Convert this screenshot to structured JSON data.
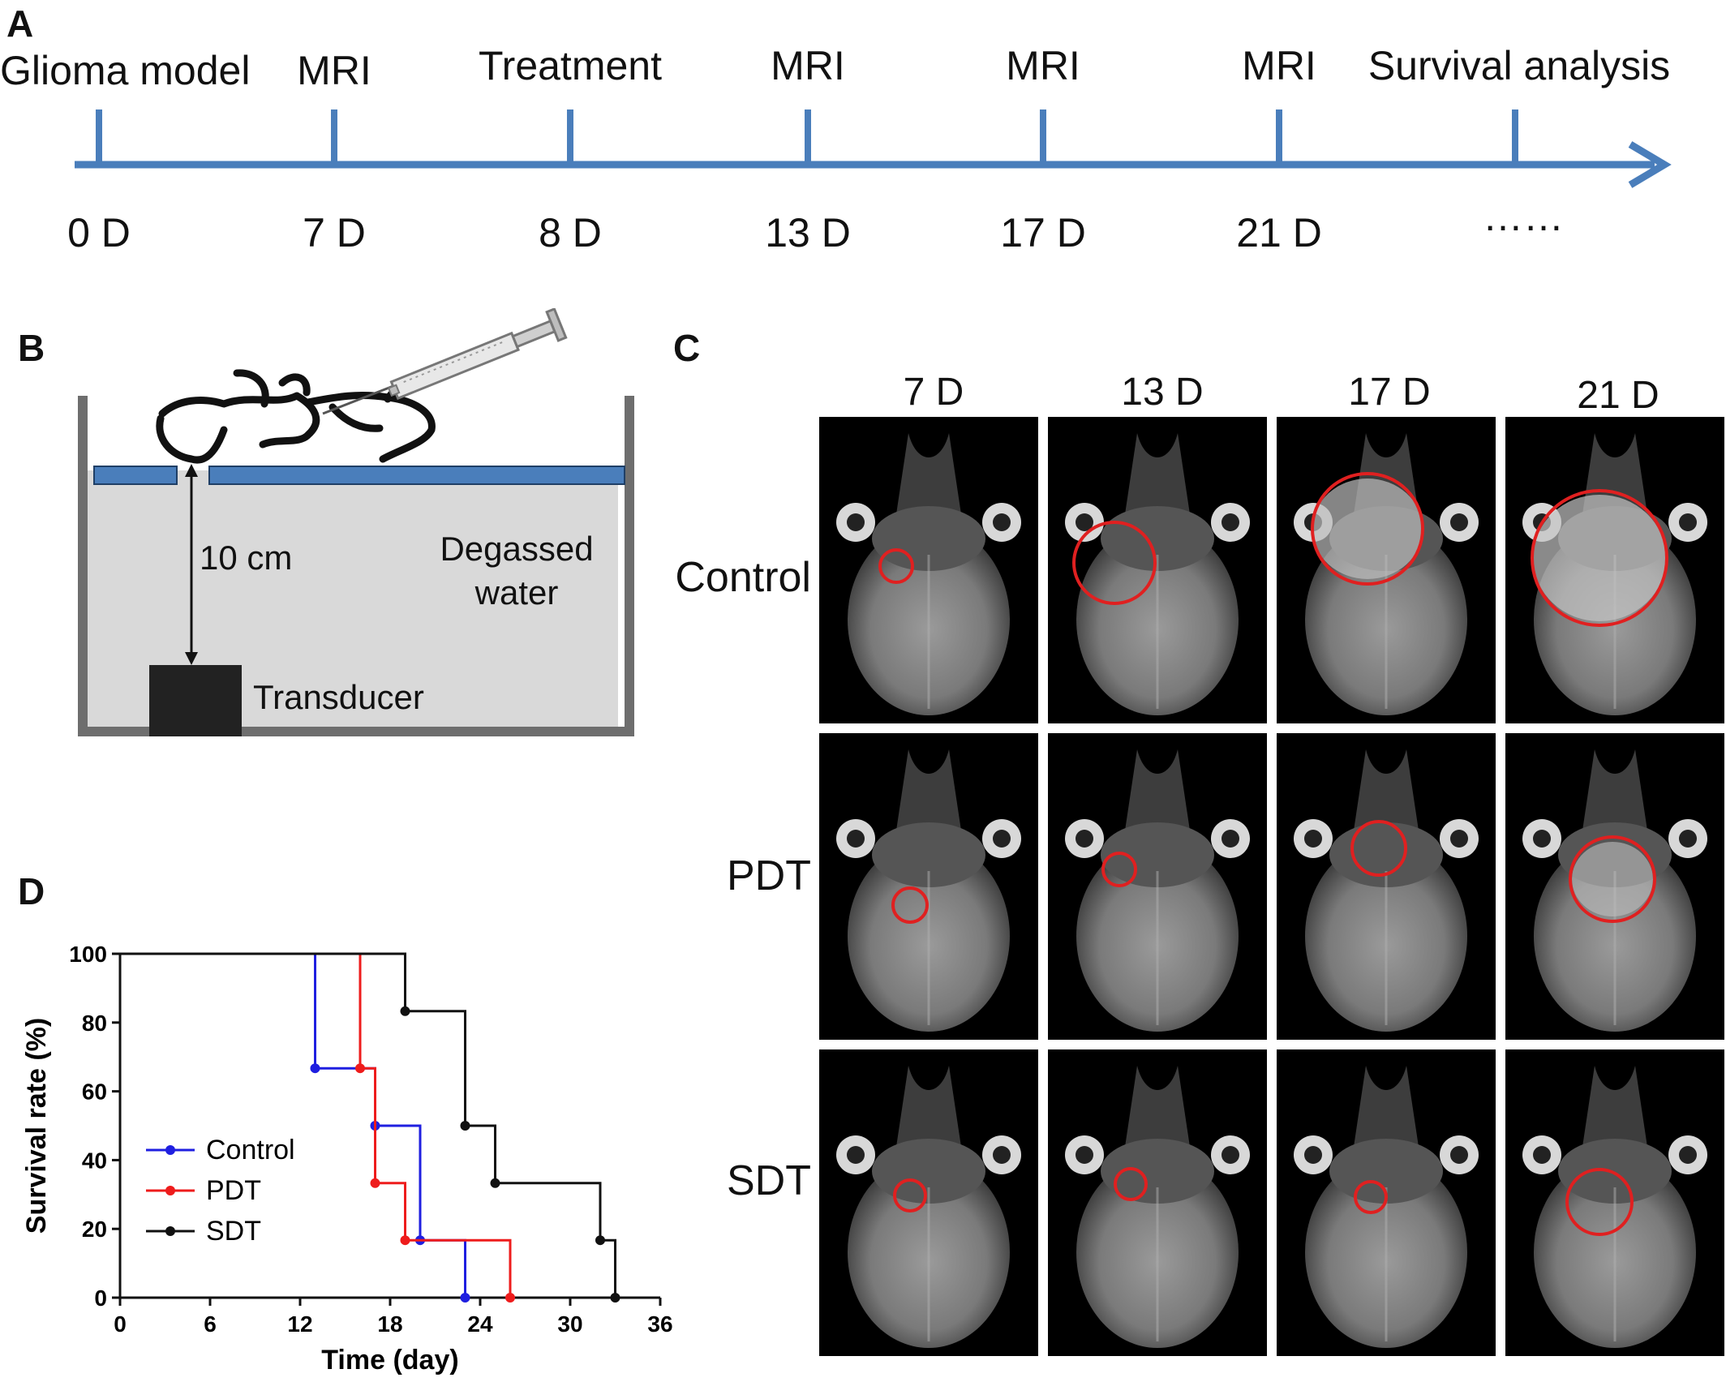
{
  "panels": {
    "A": "A",
    "B": "B",
    "C": "C",
    "D": "D"
  },
  "timeline": {
    "color": "#4a7ebb",
    "events": [
      "Glioma model",
      "MRI",
      "Treatment",
      "MRI",
      "MRI",
      "MRI",
      "Survival analysis"
    ],
    "days": [
      "0 D",
      "7 D",
      "8 D",
      "13 D",
      "17 D",
      "21 D",
      "……"
    ]
  },
  "setup": {
    "distance_label": "10 cm",
    "water_label_line1": "Degassed",
    "water_label_line2": "water",
    "transducer_label": "Transducer",
    "water_color": "#d9d9d9",
    "platform_color": "#4a7ebb"
  },
  "mri": {
    "columns": [
      "7 D",
      "13 D",
      "17 D",
      "21 D"
    ],
    "rows": [
      "Control",
      "PDT",
      "SDT"
    ],
    "circle_color": "#e02020"
  },
  "chart_data": {
    "type": "line",
    "step": true,
    "xlabel": "Time (day)",
    "ylabel": "Survival rate (%)",
    "xlim": [
      0,
      36
    ],
    "ylim": [
      0,
      100
    ],
    "xticks": [
      0,
      6,
      12,
      18,
      24,
      30,
      36
    ],
    "yticks": [
      0,
      20,
      40,
      60,
      80,
      100
    ],
    "legend_position": "left-middle",
    "series": [
      {
        "name": "Control",
        "color": "#1f1fe0",
        "x": [
          0,
          13,
          17,
          20,
          23
        ],
        "y": [
          100,
          66.7,
          50,
          16.7,
          0
        ],
        "markers_x": [
          13,
          17,
          20,
          23
        ],
        "markers_y": [
          66.7,
          50,
          16.7,
          0
        ]
      },
      {
        "name": "PDT",
        "color": "#ee1c1c",
        "x": [
          0,
          16,
          17,
          19,
          26
        ],
        "y": [
          100,
          66.7,
          33.3,
          16.7,
          0
        ],
        "markers_x": [
          16,
          17,
          19,
          26
        ],
        "markers_y": [
          66.7,
          33.3,
          16.7,
          0
        ]
      },
      {
        "name": "SDT",
        "color": "#111111",
        "x": [
          0,
          19,
          23,
          25,
          32,
          33
        ],
        "y": [
          100,
          83.3,
          50,
          33.3,
          16.7,
          0
        ],
        "markers_x": [
          19,
          23,
          25,
          32,
          33
        ],
        "markers_y": [
          83.3,
          50,
          33.3,
          16.7,
          0
        ]
      }
    ]
  }
}
